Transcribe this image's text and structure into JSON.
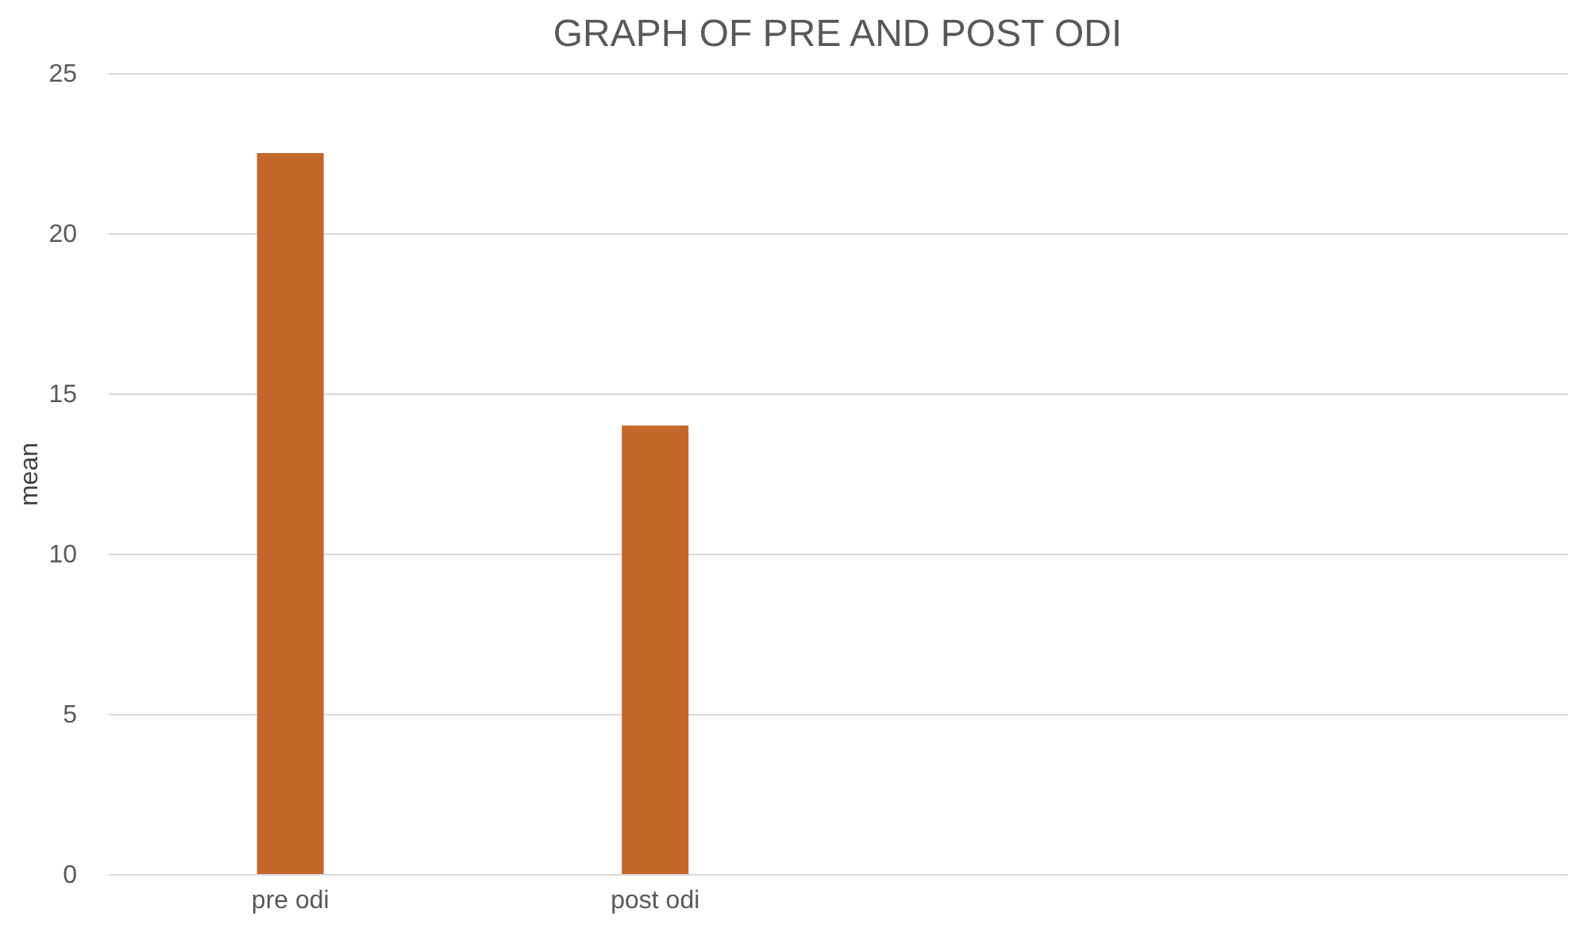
{
  "chart_data": {
    "type": "bar",
    "title": "GRAPH  OF PRE AND POST ODI",
    "ylabel": "mean",
    "categories": [
      "pre odi",
      "post odi",
      null,
      null
    ],
    "values": [
      22.5,
      14,
      null,
      null
    ],
    "color": "#c4672a",
    "ylim": [
      0,
      25
    ],
    "yticks": [
      0,
      5,
      10,
      15,
      20,
      25
    ],
    "grid": "y"
  }
}
